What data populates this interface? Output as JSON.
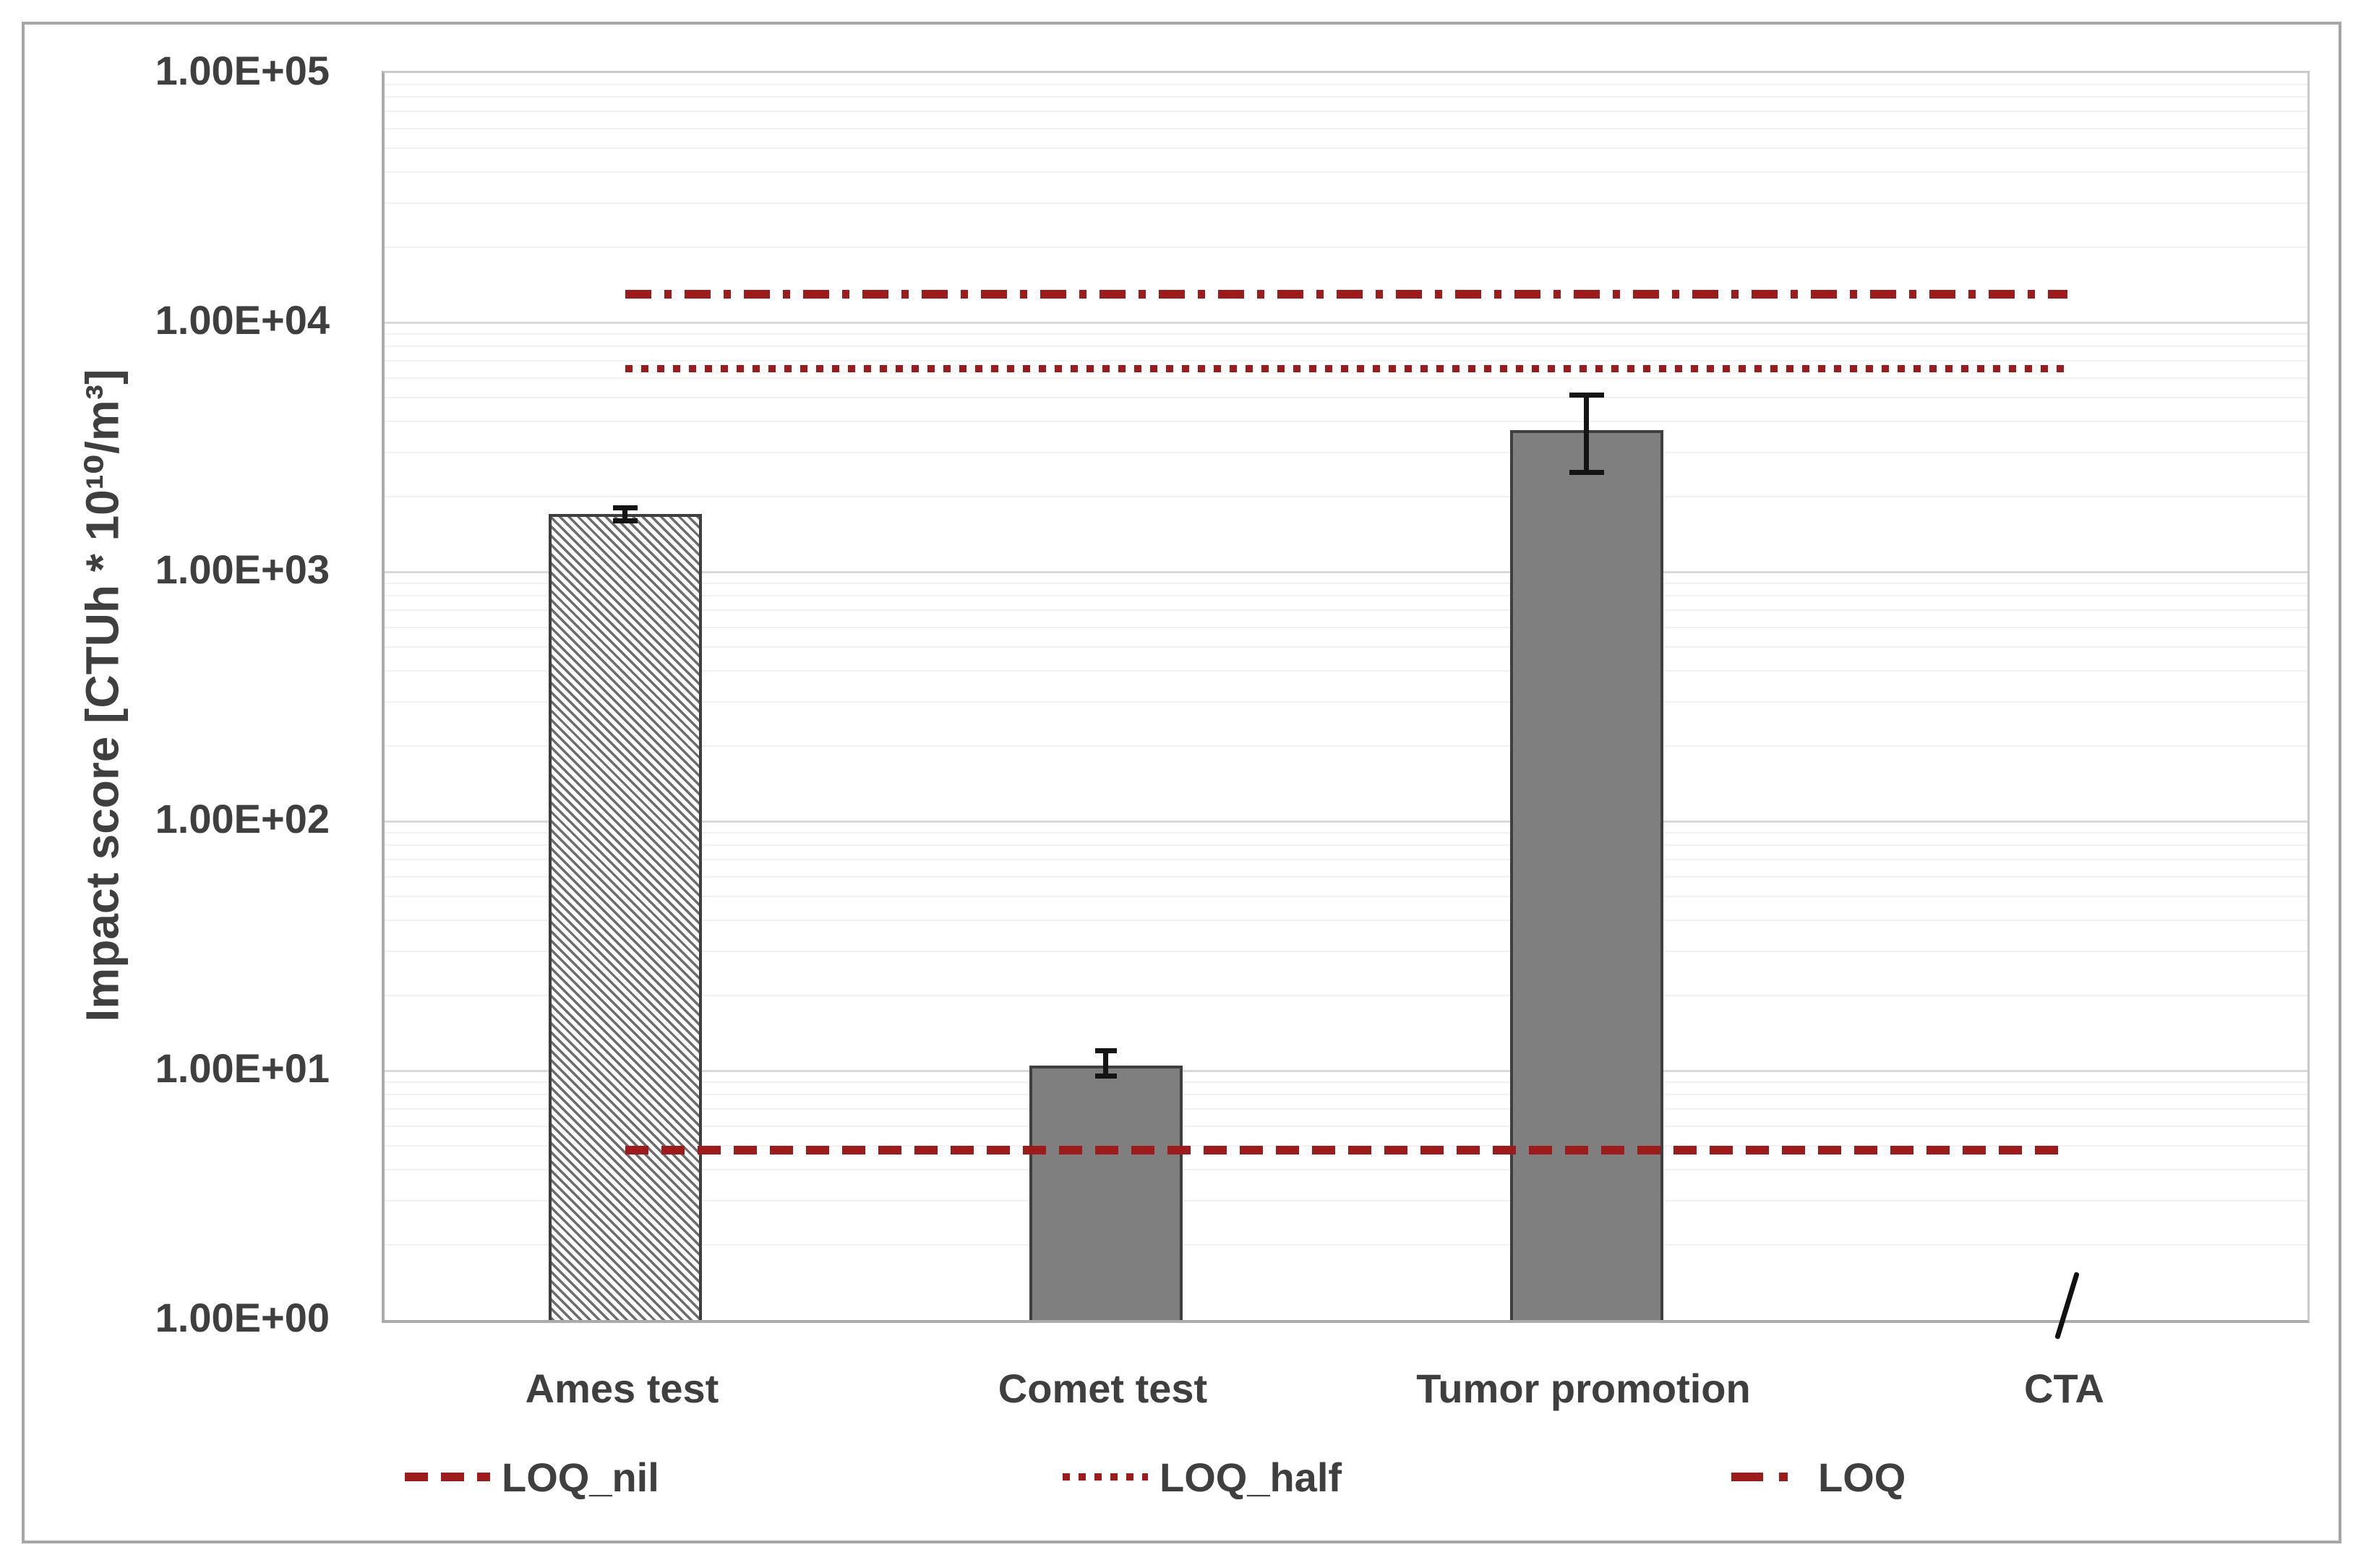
{
  "figure": {
    "background": "#ffffff",
    "border_color": "#a6a6a6"
  },
  "chart_data": {
    "type": "bar",
    "title": "",
    "xlabel": "",
    "ylabel": "Impact score [CTUh * 10¹⁰/m³]",
    "yscale": "log",
    "ylim": [
      1,
      100000
    ],
    "ytick_labels": [
      "1.00E+00",
      "1.00E+01",
      "1.00E+02",
      "1.00E+03",
      "1.00E+04",
      "1.00E+05"
    ],
    "grid": "horizontal major and minor log gridlines",
    "legend_position": "bottom",
    "categories": [
      "Ames test",
      "Comet test",
      "Tumor promotion",
      "CTA"
    ],
    "series": [
      {
        "name": "Impact score",
        "values": [
          1700,
          10.5,
          3700,
          null
        ],
        "error_low": [
          1600,
          9.5,
          2500,
          null
        ],
        "error_high": [
          1800,
          12,
          5100,
          null
        ],
        "bar_styles": [
          "hatched",
          "solid",
          "solid",
          "none"
        ],
        "no_data_marker": "CTA has no bar, shown with a slash symbol at the axis"
      }
    ],
    "ref_lines": [
      {
        "label": "LOQ_nil",
        "value": 4.8,
        "style": "dashed"
      },
      {
        "label": "LOQ_half",
        "value": 6500,
        "style": "dotted"
      },
      {
        "label": "LOQ",
        "value": 13000,
        "style": "dashdot"
      }
    ],
    "legend": {
      "entries": [
        {
          "label": "LOQ_nil",
          "style": "dashed"
        },
        {
          "label": "LOQ_half",
          "style": "dotted"
        },
        {
          "label": "LOQ",
          "style": "dashdot"
        }
      ]
    },
    "colors": {
      "bar_fill": "#7f7f7f",
      "bar_border": "#3f3f3f",
      "hatch_line": "#6d6d6d",
      "ref_line": "#9e1b1b",
      "error_bar": "#141414",
      "text": "#3f3f3f",
      "major_grid": "#dadada",
      "minor_grid": "#f2f2f2",
      "axis_line": "#ababab",
      "slash_marker": "#111111"
    }
  }
}
